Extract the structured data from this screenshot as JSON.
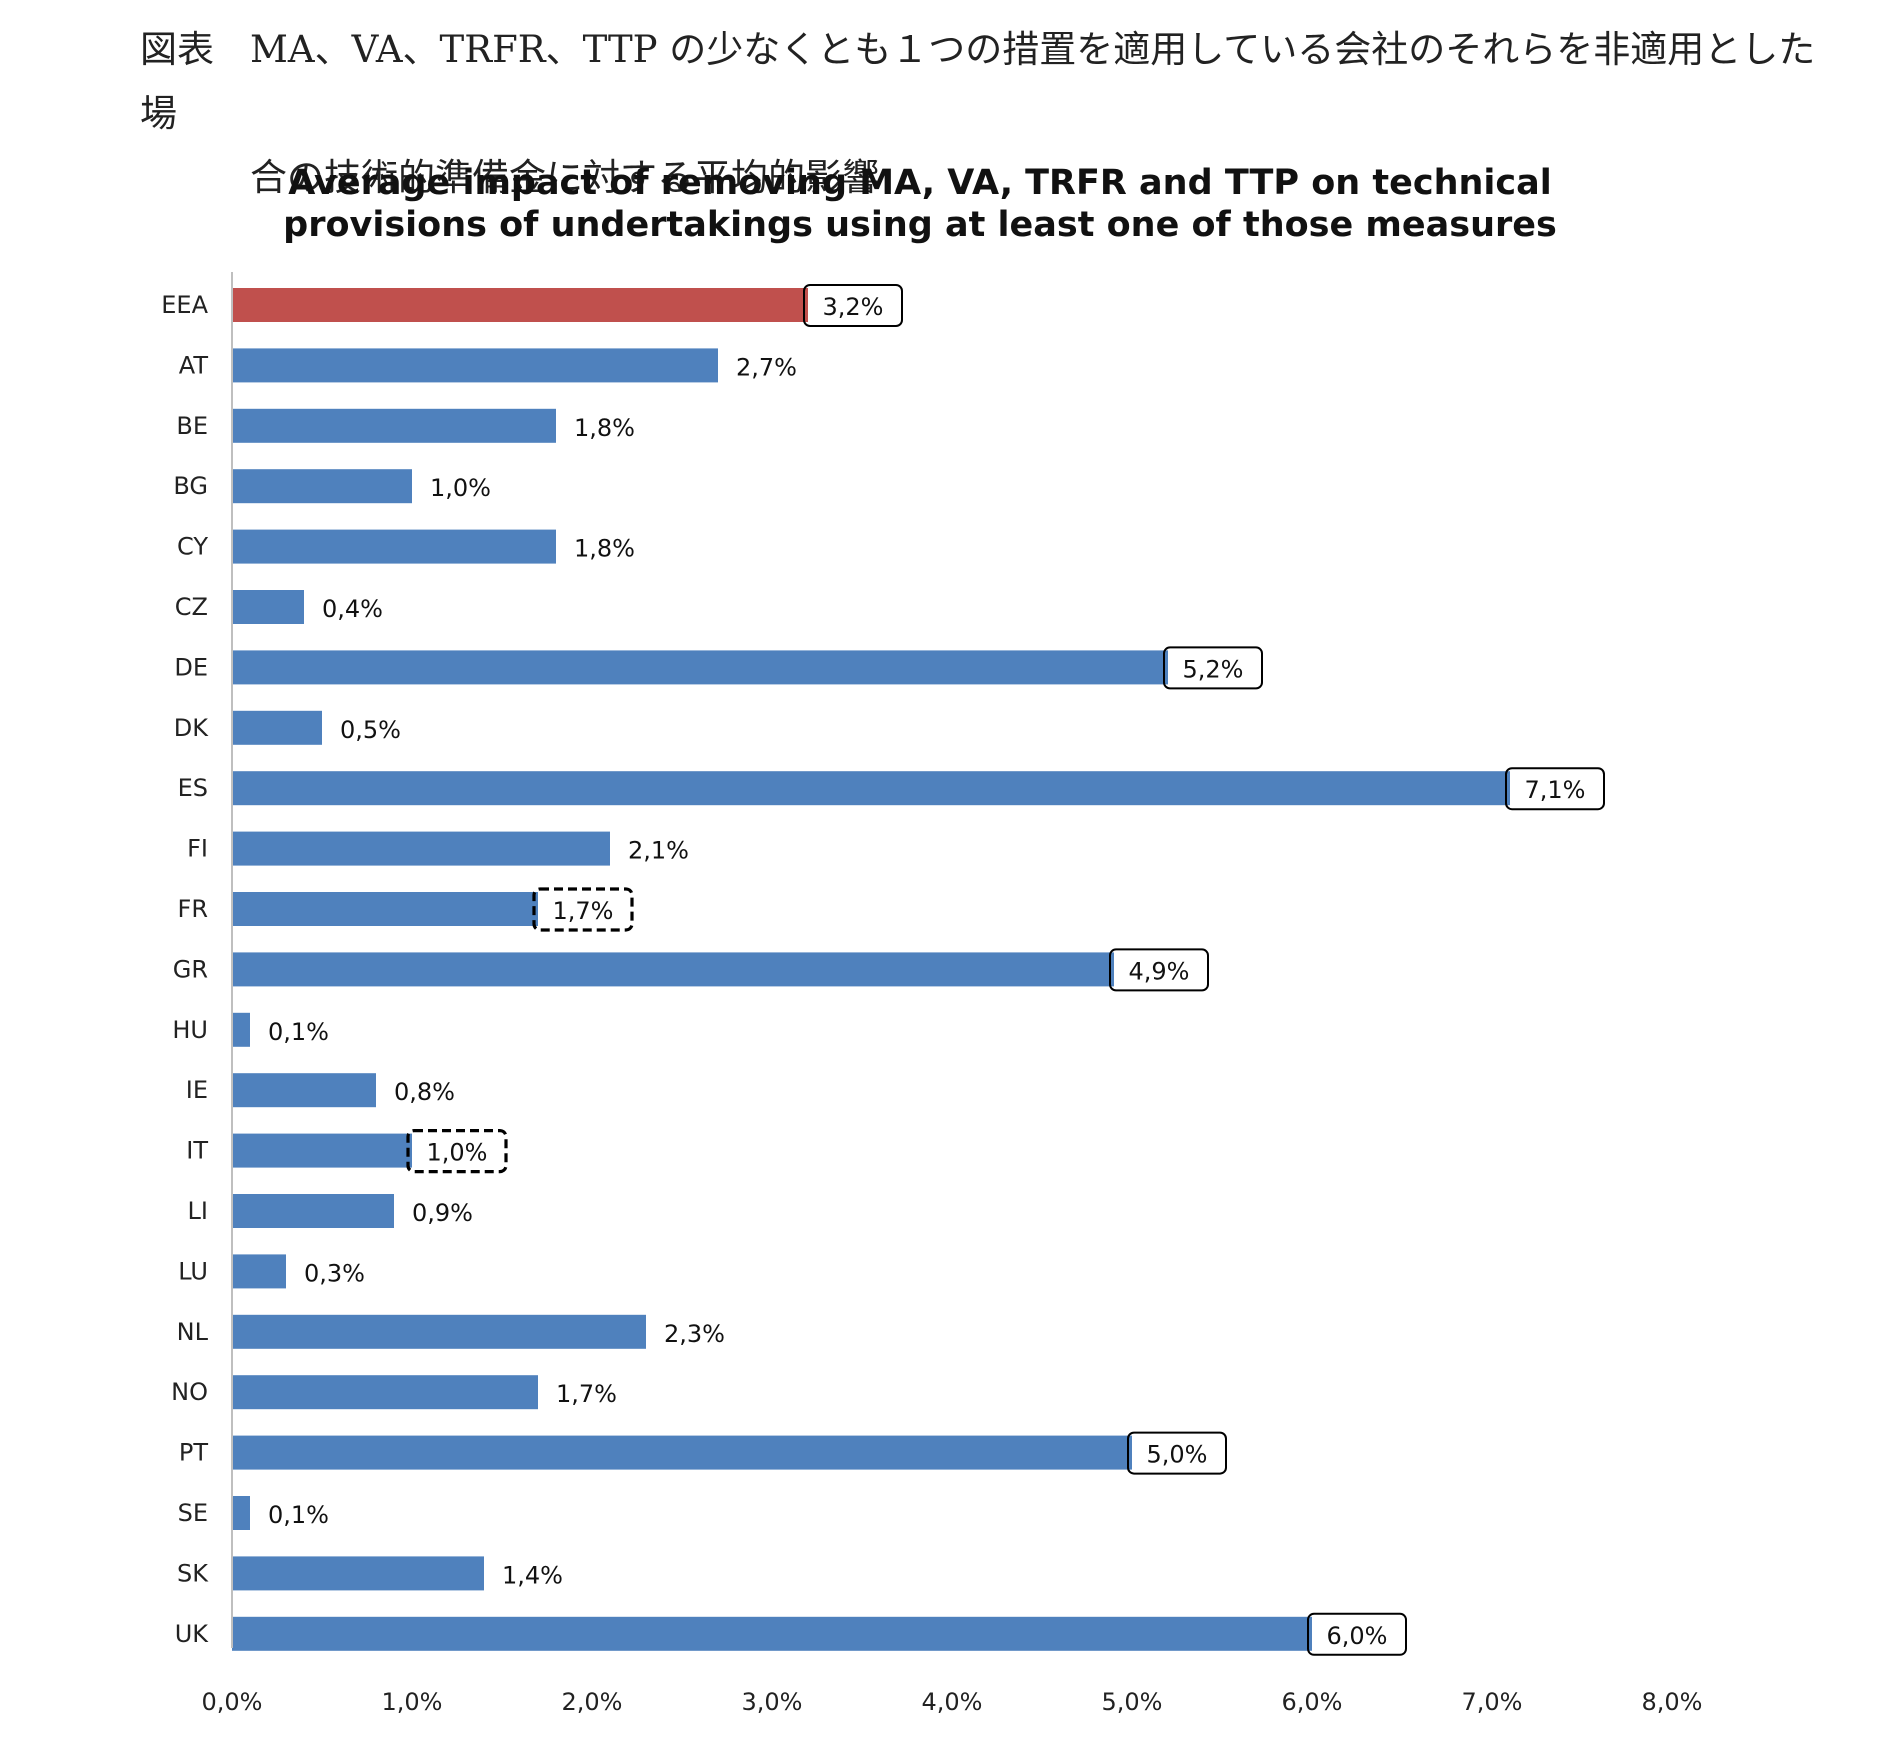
{
  "caption": {
    "label": "図表",
    "line1": "MA、VA、TRFR、TTP の少なくとも１つの措置を適用している会社のそれらを非適用とした場",
    "line2": "合の技術的準備金に対する平均的影響"
  },
  "chart_data": {
    "type": "bar",
    "orientation": "horizontal",
    "title_line1": "Average impact of removing MA, VA, TRFR and TTP on technical",
    "title_line2": "provisions of undertakings using at least one of those measures",
    "xlabel": "",
    "ylabel": "",
    "xlim": [
      0,
      8
    ],
    "value_unit": "%",
    "categories": [
      "EEA",
      "AT",
      "BE",
      "BG",
      "CY",
      "CZ",
      "DE",
      "DK",
      "ES",
      "FI",
      "FR",
      "GR",
      "HU",
      "IE",
      "IT",
      "LI",
      "LU",
      "NL",
      "NO",
      "PT",
      "SE",
      "SK",
      "UK"
    ],
    "values": [
      3.2,
      2.7,
      1.8,
      1.0,
      1.8,
      0.4,
      5.2,
      0.5,
      7.1,
      2.1,
      1.7,
      4.9,
      0.1,
      0.8,
      1.0,
      0.9,
      0.3,
      2.3,
      1.7,
      5.0,
      0.1,
      1.4,
      6.0
    ],
    "value_labels": [
      "3,2%",
      "2,7%",
      "1,8%",
      "1,0%",
      "1,8%",
      "0,4%",
      "5,2%",
      "0,5%",
      "7,1%",
      "2,1%",
      "1,7%",
      "4,9%",
      "0,1%",
      "0,8%",
      "1,0%",
      "0,9%",
      "0,3%",
      "2,3%",
      "1,7%",
      "5,0%",
      "0,1%",
      "1,4%",
      "6,0%"
    ],
    "label_box": [
      "solid",
      "none",
      "none",
      "none",
      "none",
      "none",
      "solid",
      "none",
      "solid",
      "none",
      "dashed",
      "solid",
      "none",
      "none",
      "dashed",
      "none",
      "none",
      "none",
      "none",
      "solid",
      "none",
      "none",
      "solid"
    ],
    "highlight": [
      "EEA"
    ],
    "colors": {
      "default": "#4f81bd",
      "highlight": "#c0504d",
      "axis": "#bfbfbf"
    },
    "x_ticks": [
      0,
      1,
      2,
      3,
      4,
      5,
      6,
      7,
      8
    ],
    "x_tick_labels": [
      "0,0%",
      "1,0%",
      "2,0%",
      "3,0%",
      "4,0%",
      "5,0%",
      "6,0%",
      "7,0%",
      "8,0%"
    ],
    "grid": false,
    "legend": "none"
  }
}
